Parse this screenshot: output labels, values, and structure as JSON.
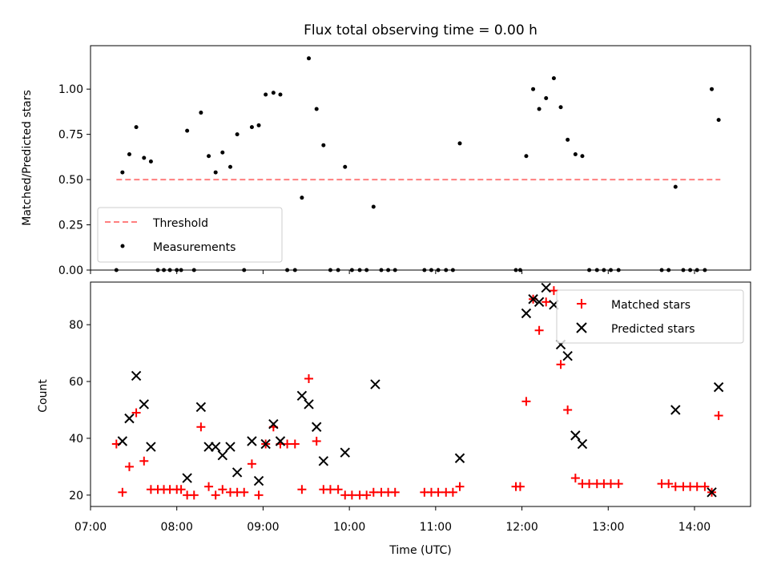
{
  "chart_data": [
    {
      "type": "scatter",
      "title": "Flux total observing time = 0.00 h",
      "ylabel": "Matched/Predicted stars",
      "xlabel": "",
      "xlim_hours": [
        7.0,
        14.65
      ],
      "ylim": [
        0,
        1.24
      ],
      "yticks": [
        0.0,
        0.25,
        0.5,
        0.75,
        1.0
      ],
      "ytick_labels": [
        "0.00",
        "0.25",
        "0.50",
        "0.75",
        "1.00"
      ],
      "legend_position": "lower-left",
      "series": [
        {
          "name": "Threshold",
          "kind": "dashed-line",
          "color": "#ff7f7f",
          "x": [
            7.3,
            14.3
          ],
          "y": [
            0.5,
            0.5
          ]
        },
        {
          "name": "Measurements",
          "kind": "dot",
          "color": "#000000",
          "points": [
            [
              7.3,
              0.0
            ],
            [
              7.37,
              0.54
            ],
            [
              7.45,
              0.64
            ],
            [
              7.53,
              0.79
            ],
            [
              7.62,
              0.62
            ],
            [
              7.7,
              0.6
            ],
            [
              7.78,
              0.0
            ],
            [
              7.85,
              0.0
            ],
            [
              7.92,
              0.0
            ],
            [
              8.0,
              0.0
            ],
            [
              8.05,
              0.0
            ],
            [
              8.12,
              0.77
            ],
            [
              8.2,
              0.0
            ],
            [
              8.28,
              0.87
            ],
            [
              8.37,
              0.63
            ],
            [
              8.45,
              0.54
            ],
            [
              8.53,
              0.65
            ],
            [
              8.62,
              0.57
            ],
            [
              8.7,
              0.75
            ],
            [
              8.78,
              0.0
            ],
            [
              8.87,
              0.79
            ],
            [
              8.95,
              0.8
            ],
            [
              9.03,
              0.97
            ],
            [
              9.12,
              0.98
            ],
            [
              9.2,
              0.97
            ],
            [
              9.28,
              0.0
            ],
            [
              9.37,
              0.0
            ],
            [
              9.45,
              0.4
            ],
            [
              9.53,
              1.17
            ],
            [
              9.62,
              0.89
            ],
            [
              9.7,
              0.69
            ],
            [
              9.78,
              0.0
            ],
            [
              9.87,
              0.0
            ],
            [
              9.95,
              0.57
            ],
            [
              10.03,
              0.0
            ],
            [
              10.12,
              0.0
            ],
            [
              10.2,
              0.0
            ],
            [
              10.28,
              0.35
            ],
            [
              10.37,
              0.0
            ],
            [
              10.45,
              0.0
            ],
            [
              10.53,
              0.0
            ],
            [
              10.87,
              0.0
            ],
            [
              10.95,
              0.0
            ],
            [
              11.03,
              0.0
            ],
            [
              11.12,
              0.0
            ],
            [
              11.2,
              0.0
            ],
            [
              11.28,
              0.7
            ],
            [
              11.93,
              0.0
            ],
            [
              11.98,
              0.0
            ],
            [
              12.05,
              0.63
            ],
            [
              12.13,
              1.0
            ],
            [
              12.2,
              0.89
            ],
            [
              12.28,
              0.95
            ],
            [
              12.37,
              1.06
            ],
            [
              12.45,
              0.9
            ],
            [
              12.53,
              0.72
            ],
            [
              12.62,
              0.64
            ],
            [
              12.7,
              0.63
            ],
            [
              12.78,
              0.0
            ],
            [
              12.87,
              0.0
            ],
            [
              12.95,
              0.0
            ],
            [
              13.03,
              0.0
            ],
            [
              13.12,
              0.0
            ],
            [
              13.62,
              0.0
            ],
            [
              13.7,
              0.0
            ],
            [
              13.78,
              0.46
            ],
            [
              13.87,
              0.0
            ],
            [
              13.95,
              0.0
            ],
            [
              14.03,
              0.0
            ],
            [
              14.12,
              0.0
            ],
            [
              14.2,
              1.0
            ],
            [
              14.28,
              0.83
            ]
          ]
        }
      ]
    },
    {
      "type": "scatter",
      "title": "",
      "ylabel": "Count",
      "xlabel": "Time (UTC)",
      "xlim_hours": [
        7.0,
        14.65
      ],
      "ylim": [
        16,
        95
      ],
      "yticks": [
        20,
        40,
        60,
        80
      ],
      "ytick_labels": [
        "20",
        "40",
        "60",
        "80"
      ],
      "xticks": [
        7,
        8,
        9,
        10,
        11,
        12,
        13,
        14
      ],
      "xtick_labels": [
        "07:00",
        "08:00",
        "09:00",
        "10:00",
        "11:00",
        "12:00",
        "13:00",
        "14:00"
      ],
      "legend_position": "upper-right",
      "series": [
        {
          "name": "Matched stars",
          "kind": "plus",
          "color": "#ff0000",
          "points": [
            [
              7.3,
              38
            ],
            [
              7.37,
              21
            ],
            [
              7.45,
              30
            ],
            [
              7.53,
              49
            ],
            [
              7.62,
              32
            ],
            [
              7.7,
              22
            ],
            [
              7.78,
              22
            ],
            [
              7.85,
              22
            ],
            [
              7.92,
              22
            ],
            [
              8.0,
              22
            ],
            [
              8.05,
              22
            ],
            [
              8.12,
              20
            ],
            [
              8.2,
              20
            ],
            [
              8.28,
              44
            ],
            [
              8.37,
              23
            ],
            [
              8.45,
              20
            ],
            [
              8.53,
              22
            ],
            [
              8.62,
              21
            ],
            [
              8.7,
              21
            ],
            [
              8.78,
              21
            ],
            [
              8.87,
              31
            ],
            [
              8.95,
              20
            ],
            [
              9.03,
              38
            ],
            [
              9.12,
              44
            ],
            [
              9.2,
              38
            ],
            [
              9.28,
              38
            ],
            [
              9.37,
              38
            ],
            [
              9.45,
              22
            ],
            [
              9.53,
              61
            ],
            [
              9.62,
              39
            ],
            [
              9.7,
              22
            ],
            [
              9.78,
              22
            ],
            [
              9.87,
              22
            ],
            [
              9.95,
              20
            ],
            [
              10.03,
              20
            ],
            [
              10.12,
              20
            ],
            [
              10.2,
              20
            ],
            [
              10.28,
              21
            ],
            [
              10.37,
              21
            ],
            [
              10.45,
              21
            ],
            [
              10.53,
              21
            ],
            [
              10.87,
              21
            ],
            [
              10.95,
              21
            ],
            [
              11.03,
              21
            ],
            [
              11.12,
              21
            ],
            [
              11.2,
              21
            ],
            [
              11.28,
              23
            ],
            [
              11.93,
              23
            ],
            [
              11.98,
              23
            ],
            [
              12.05,
              53
            ],
            [
              12.13,
              89
            ],
            [
              12.2,
              78
            ],
            [
              12.28,
              88
            ],
            [
              12.37,
              92
            ],
            [
              12.45,
              66
            ],
            [
              12.53,
              50
            ],
            [
              12.62,
              26
            ],
            [
              12.7,
              24
            ],
            [
              12.78,
              24
            ],
            [
              12.87,
              24
            ],
            [
              12.95,
              24
            ],
            [
              13.03,
              24
            ],
            [
              13.12,
              24
            ],
            [
              13.62,
              24
            ],
            [
              13.7,
              24
            ],
            [
              13.78,
              23
            ],
            [
              13.87,
              23
            ],
            [
              13.95,
              23
            ],
            [
              14.03,
              23
            ],
            [
              14.12,
              23
            ],
            [
              14.2,
              21
            ],
            [
              14.28,
              48
            ]
          ]
        },
        {
          "name": "Predicted stars",
          "kind": "x",
          "color": "#000000",
          "points": [
            [
              7.37,
              39
            ],
            [
              7.45,
              47
            ],
            [
              7.53,
              62
            ],
            [
              7.62,
              52
            ],
            [
              7.7,
              37
            ],
            [
              8.12,
              26
            ],
            [
              8.28,
              51
            ],
            [
              8.37,
              37
            ],
            [
              8.45,
              37
            ],
            [
              8.53,
              34
            ],
            [
              8.62,
              37
            ],
            [
              8.7,
              28
            ],
            [
              8.87,
              39
            ],
            [
              8.95,
              25
            ],
            [
              9.03,
              38
            ],
            [
              9.12,
              45
            ],
            [
              9.2,
              39
            ],
            [
              9.45,
              55
            ],
            [
              9.53,
              52
            ],
            [
              9.62,
              44
            ],
            [
              9.7,
              32
            ],
            [
              9.95,
              35
            ],
            [
              10.3,
              59
            ],
            [
              11.28,
              33
            ],
            [
              12.05,
              84
            ],
            [
              12.13,
              89
            ],
            [
              12.2,
              88
            ],
            [
              12.28,
              93
            ],
            [
              12.37,
              87
            ],
            [
              12.45,
              73
            ],
            [
              12.53,
              69
            ],
            [
              12.62,
              41
            ],
            [
              12.7,
              38
            ],
            [
              13.78,
              50
            ],
            [
              14.2,
              21
            ],
            [
              14.28,
              58
            ]
          ]
        }
      ]
    }
  ]
}
